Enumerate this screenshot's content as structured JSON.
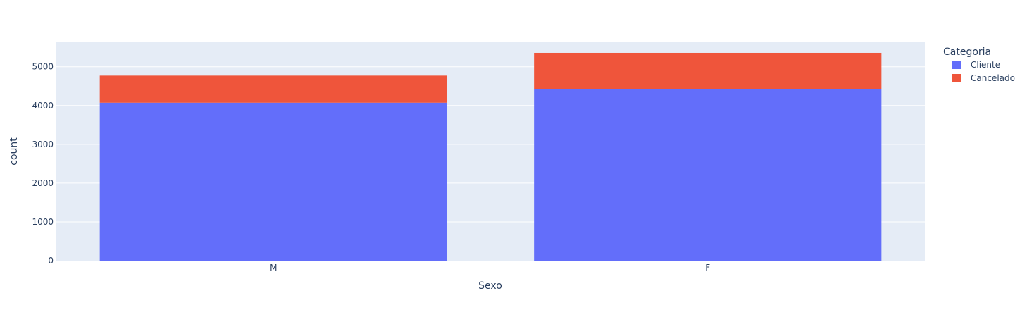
{
  "chart_data": {
    "type": "bar",
    "stacked": true,
    "categories": [
      "M",
      "F"
    ],
    "series": [
      {
        "name": "Cliente",
        "values": [
          4072,
          4428
        ],
        "color": "#636efa"
      },
      {
        "name": "Cancelado",
        "values": [
          698,
          930
        ],
        "color": "#ef553b"
      }
    ],
    "xlabel": "Sexo",
    "ylabel": "count",
    "ylim": [
      0,
      5630
    ],
    "yticks": [
      0,
      1000,
      2000,
      3000,
      4000,
      5000
    ],
    "grid": true,
    "plot_background": "#e5ecf6",
    "legend": {
      "title": "Categoria",
      "placement": "top-right"
    }
  }
}
